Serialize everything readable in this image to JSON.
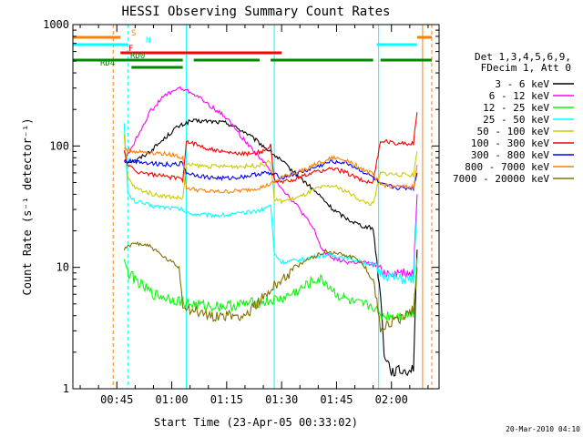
{
  "chart_data": {
    "type": "line",
    "title": "HESSI Observing Summary Count Rates",
    "xlabel": "Start Time (23-Apr-05 00:33:02)",
    "ylabel": "Count Rate (s⁻¹ detector⁻¹)",
    "x_ticks": [
      "00:45",
      "01:00",
      "01:15",
      "01:30",
      "01:45",
      "02:00"
    ],
    "y_ticks": [
      "1",
      "10",
      "100",
      "1000"
    ],
    "x_range_min": [
      33,
      133
    ],
    "y_range": [
      1,
      1000
    ],
    "y_scale": "log",
    "legend_header": [
      "Det 1,3,4,5,6,9,",
      "FDecim 1, Att 0"
    ],
    "series": [
      {
        "name": "3 - 6 keV",
        "color": "#000000",
        "points": [
          [
            47,
            75
          ],
          [
            50,
            75
          ],
          [
            54,
            90
          ],
          [
            58,
            115
          ],
          [
            61,
            140
          ],
          [
            65,
            160
          ],
          [
            70,
            160
          ],
          [
            75,
            155
          ],
          [
            80,
            130
          ],
          [
            85,
            100
          ],
          [
            90,
            75
          ],
          [
            95,
            55
          ],
          [
            100,
            40
          ],
          [
            104,
            30
          ],
          [
            108,
            25
          ],
          [
            112,
            22
          ],
          [
            115,
            21
          ],
          [
            117,
            6
          ],
          [
            118,
            2
          ],
          [
            120,
            1.4
          ],
          [
            124,
            1.4
          ],
          [
            126,
            1.5
          ],
          [
            127,
            14
          ]
        ]
      },
      {
        "name": "6 - 12 keV",
        "color": "#ff00ff",
        "points": [
          [
            47,
            75
          ],
          [
            50,
            110
          ],
          [
            54,
            190
          ],
          [
            58,
            260
          ],
          [
            62,
            300
          ],
          [
            66,
            270
          ],
          [
            70,
            220
          ],
          [
            75,
            170
          ],
          [
            80,
            110
          ],
          [
            85,
            75
          ],
          [
            90,
            45
          ],
          [
            95,
            30
          ],
          [
            99,
            20
          ],
          [
            101,
            14
          ],
          [
            104,
            12
          ],
          [
            108,
            11
          ],
          [
            112,
            11
          ],
          [
            115,
            10.5
          ],
          [
            117,
            10
          ],
          [
            118,
            9
          ],
          [
            122,
            9
          ],
          [
            126,
            9
          ],
          [
            127,
            40
          ]
        ]
      },
      {
        "name": "12 - 25 keV",
        "color": "#00ff00",
        "points": [
          [
            47,
            12
          ],
          [
            48,
            9
          ],
          [
            50,
            8
          ],
          [
            52,
            7
          ],
          [
            55,
            6
          ],
          [
            60,
            5.5
          ],
          [
            65,
            5
          ],
          [
            70,
            4.8
          ],
          [
            75,
            4.8
          ],
          [
            80,
            5
          ],
          [
            85,
            5.2
          ],
          [
            90,
            5.5
          ],
          [
            95,
            6.5
          ],
          [
            98,
            7.5
          ],
          [
            100,
            8
          ],
          [
            102,
            7.5
          ],
          [
            105,
            6
          ],
          [
            110,
            5
          ],
          [
            115,
            4.8
          ],
          [
            117,
            4
          ],
          [
            122,
            4
          ],
          [
            126,
            4.2
          ],
          [
            127,
            12
          ]
        ]
      },
      {
        "name": "25 - 50 keV",
        "color": "#00ffff",
        "points": [
          [
            47,
            160
          ],
          [
            48,
            40
          ],
          [
            50,
            35
          ],
          [
            55,
            32
          ],
          [
            60,
            31
          ],
          [
            63,
            30
          ],
          [
            64,
            28
          ],
          [
            70,
            27
          ],
          [
            75,
            27
          ],
          [
            80,
            28
          ],
          [
            85,
            30
          ],
          [
            87,
            33
          ],
          [
            88,
            13
          ],
          [
            90,
            11
          ],
          [
            95,
            11.5
          ],
          [
            100,
            12.5
          ],
          [
            104,
            12.5
          ],
          [
            108,
            12
          ],
          [
            112,
            11
          ],
          [
            115,
            10.5
          ],
          [
            117,
            9
          ],
          [
            122,
            8
          ],
          [
            126,
            8
          ],
          [
            127,
            30
          ]
        ]
      },
      {
        "name": "50 - 100 keV",
        "color": "#cccc00",
        "points": [
          [
            47,
            120
          ],
          [
            48,
            55
          ],
          [
            50,
            45
          ],
          [
            55,
            40
          ],
          [
            60,
            38
          ],
          [
            63,
            37
          ],
          [
            64,
            70
          ],
          [
            70,
            68
          ],
          [
            75,
            68
          ],
          [
            80,
            68
          ],
          [
            85,
            70
          ],
          [
            87,
            75
          ],
          [
            88,
            36
          ],
          [
            90,
            35
          ],
          [
            95,
            38
          ],
          [
            100,
            45
          ],
          [
            104,
            47
          ],
          [
            108,
            42
          ],
          [
            112,
            35
          ],
          [
            115,
            33
          ],
          [
            117,
            60
          ],
          [
            122,
            58
          ],
          [
            126,
            58
          ],
          [
            127,
            90
          ]
        ]
      },
      {
        "name": "100 - 300 keV",
        "color": "#ff0000",
        "points": [
          [
            47,
            90
          ],
          [
            48,
            70
          ],
          [
            50,
            62
          ],
          [
            55,
            58
          ],
          [
            60,
            55
          ],
          [
            63,
            53
          ],
          [
            64,
            110
          ],
          [
            70,
            95
          ],
          [
            75,
            88
          ],
          [
            80,
            86
          ],
          [
            85,
            90
          ],
          [
            87,
            100
          ],
          [
            88,
            52
          ],
          [
            90,
            50
          ],
          [
            95,
            55
          ],
          [
            100,
            62
          ],
          [
            104,
            65
          ],
          [
            108,
            60
          ],
          [
            112,
            52
          ],
          [
            115,
            50
          ],
          [
            117,
            110
          ],
          [
            122,
            105
          ],
          [
            126,
            105
          ],
          [
            127,
            190
          ]
        ]
      },
      {
        "name": "300 - 800 keV",
        "color": "#0000ff",
        "points": [
          [
            47,
            75
          ],
          [
            50,
            75
          ],
          [
            55,
            72
          ],
          [
            60,
            70
          ],
          [
            63,
            72
          ],
          [
            64,
            60
          ],
          [
            70,
            55
          ],
          [
            75,
            54
          ],
          [
            80,
            56
          ],
          [
            85,
            60
          ],
          [
            88,
            58
          ],
          [
            90,
            55
          ],
          [
            95,
            60
          ],
          [
            100,
            68
          ],
          [
            104,
            75
          ],
          [
            108,
            72
          ],
          [
            112,
            62
          ],
          [
            115,
            55
          ],
          [
            117,
            48
          ],
          [
            122,
            45
          ],
          [
            126,
            45
          ],
          [
            127,
            60
          ]
        ]
      },
      {
        "name": "800 - 7000 keV",
        "color": "#ff7f00",
        "points": [
          [
            47,
            95
          ],
          [
            50,
            90
          ],
          [
            55,
            88
          ],
          [
            60,
            85
          ],
          [
            63,
            80
          ],
          [
            64,
            45
          ],
          [
            70,
            42
          ],
          [
            75,
            42
          ],
          [
            80,
            43
          ],
          [
            85,
            46
          ],
          [
            88,
            50
          ],
          [
            90,
            55
          ],
          [
            95,
            62
          ],
          [
            100,
            72
          ],
          [
            104,
            80
          ],
          [
            108,
            76
          ],
          [
            112,
            65
          ],
          [
            115,
            58
          ],
          [
            117,
            48
          ],
          [
            122,
            46
          ],
          [
            126,
            46
          ],
          [
            127,
            70
          ]
        ]
      },
      {
        "name": "7000 - 20000 keV",
        "color": "#807000",
        "points": [
          [
            47,
            14
          ],
          [
            50,
            16
          ],
          [
            54,
            15
          ],
          [
            58,
            12
          ],
          [
            62,
            10
          ],
          [
            63,
            5
          ],
          [
            65,
            4.5
          ],
          [
            70,
            4
          ],
          [
            75,
            4
          ],
          [
            80,
            4
          ],
          [
            83,
            5
          ],
          [
            86,
            6
          ],
          [
            88,
            7
          ],
          [
            90,
            8
          ],
          [
            94,
            10
          ],
          [
            98,
            12
          ],
          [
            102,
            13.5
          ],
          [
            106,
            13
          ],
          [
            110,
            12
          ],
          [
            113,
            10
          ],
          [
            115,
            8
          ],
          [
            117,
            3.2
          ],
          [
            120,
            3.5
          ],
          [
            124,
            4
          ],
          [
            126,
            4.5
          ],
          [
            127,
            10
          ]
        ]
      }
    ],
    "flags": [
      {
        "label": "S",
        "color": "#ff7f00",
        "segments": [
          [
            33,
            46
          ],
          [
            127,
            131
          ]
        ]
      },
      {
        "label": "N",
        "color": "#00ffff",
        "segments": [
          [
            33,
            48
          ],
          [
            116,
            127
          ]
        ]
      },
      {
        "label": "F",
        "color": "#ff0000",
        "segments": [
          [
            46,
            90
          ]
        ]
      },
      {
        "label": "RD0",
        "color": "#008800",
        "segments": [
          [
            33,
            63
          ],
          [
            66,
            84
          ],
          [
            87,
            115
          ],
          [
            117,
            131
          ]
        ]
      },
      {
        "label": "RD4",
        "color": "#008800",
        "segments": [
          [
            49,
            63
          ]
        ]
      }
    ],
    "vertical_lines": [
      {
        "x": 44,
        "color": "#ff7f00",
        "style": "dashed"
      },
      {
        "x": 48,
        "color": "#00ffff",
        "style": "dashed"
      },
      {
        "x": 64,
        "color": "#00ffff",
        "style": "solid"
      },
      {
        "x": 88,
        "color": "#00ffff",
        "style": "solid"
      },
      {
        "x": 116.5,
        "color": "#00ffff",
        "style": "solid"
      },
      {
        "x": 128.5,
        "color": "#ff7f00",
        "style": "solid"
      },
      {
        "x": 131,
        "color": "#ff7f00",
        "style": "dashed"
      }
    ],
    "timestamp": "20-Mar-2010 04:10"
  }
}
